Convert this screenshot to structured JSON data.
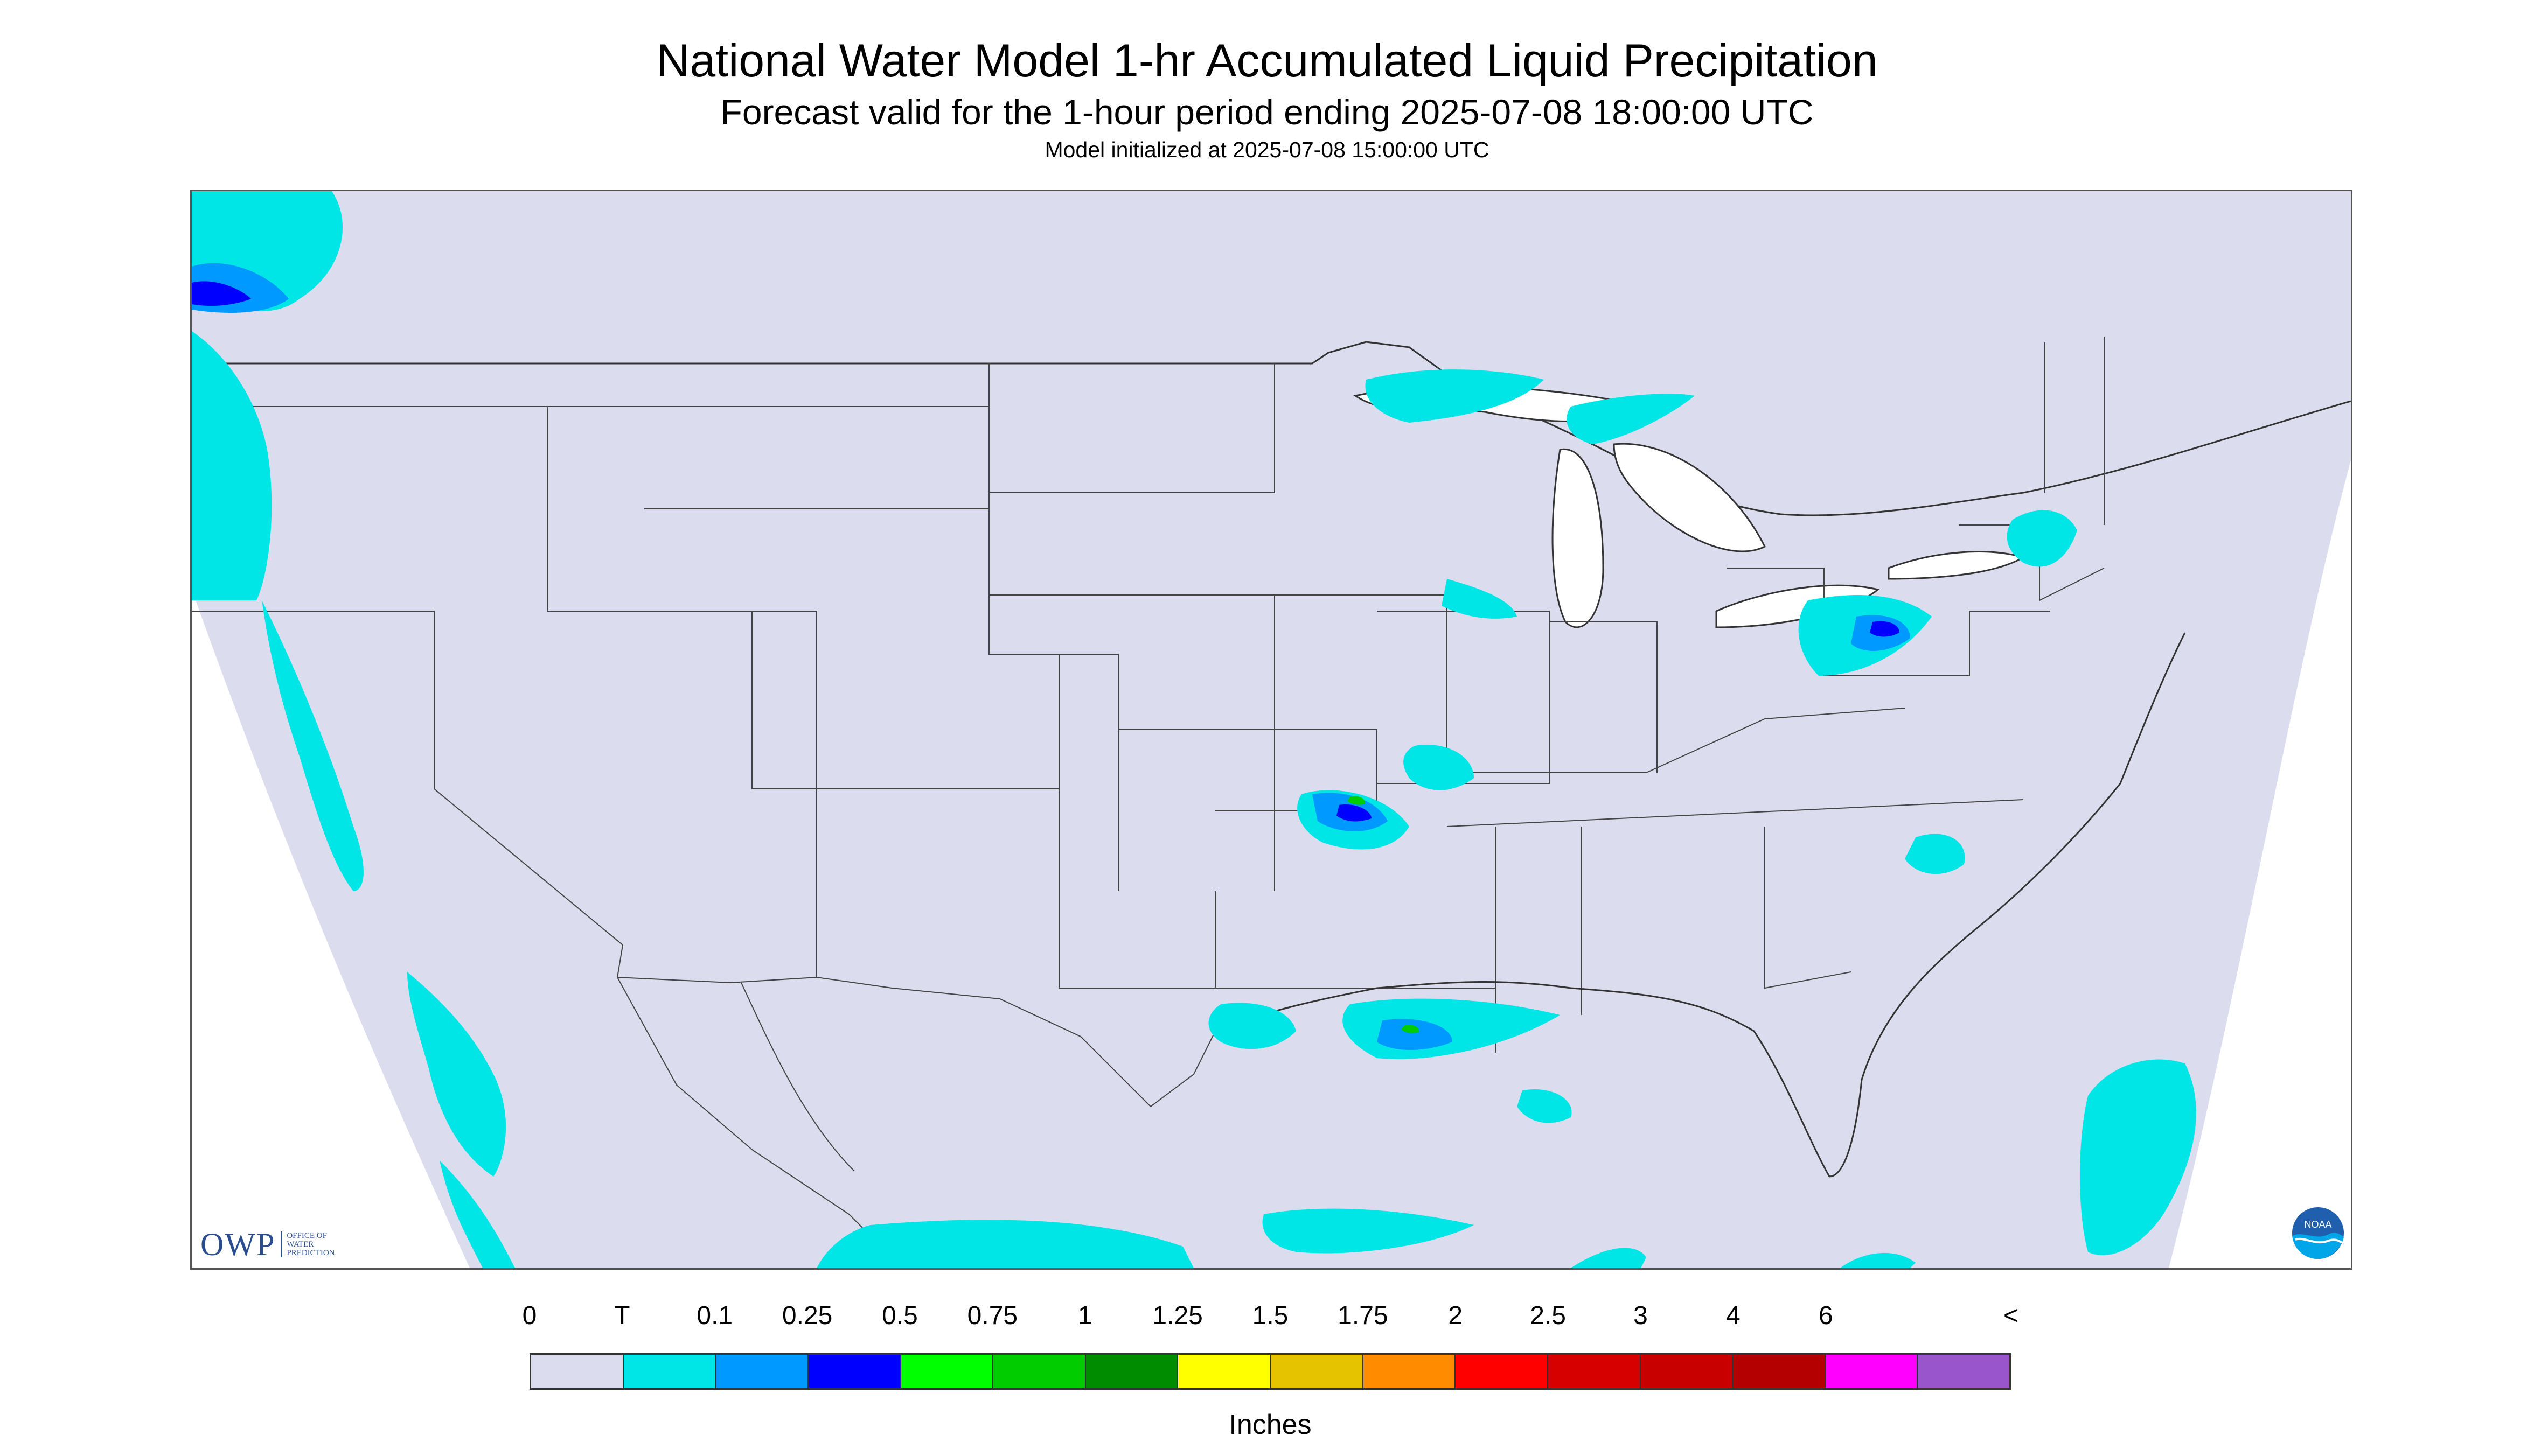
{
  "header": {
    "title": "National Water Model 1-hr Accumulated Liquid Precipitation",
    "subtitle": "Forecast valid for the 1-hour period ending 2025-07-08 18:00:00 UTC",
    "init_line": "Model initialized at 2025-07-08 15:00:00 UTC"
  },
  "legend": {
    "labels": [
      "0",
      "T",
      "0.1",
      "0.25",
      "0.5",
      "0.75",
      "1",
      "1.25",
      "1.5",
      "1.75",
      "2",
      "2.5",
      "3",
      "4",
      "6",
      "<"
    ],
    "colors": [
      "#dcdcef",
      "#00e6e6",
      "#0099ff",
      "#0000ff",
      "#00ff00",
      "#00cc00",
      "#008c00",
      "#ffff00",
      "#e6c300",
      "#ff8c00",
      "#ff0000",
      "#d70000",
      "#c80000",
      "#b40000",
      "#ff00ff",
      "#9955cc"
    ],
    "unit": "Inches"
  },
  "map": {
    "domain_fill": "#dcdcef",
    "outside_fill": "#ffffff",
    "precip_light": "#00e6e6",
    "precip_moderate": "#0099ff",
    "precip_heavy": "#0000ff",
    "precip_green": "#00cc00"
  },
  "logos": {
    "owp_text": "OWP",
    "owp_subtext": "OFFICE OF WATER PREDICTION",
    "noaa_text": "NOAA"
  }
}
